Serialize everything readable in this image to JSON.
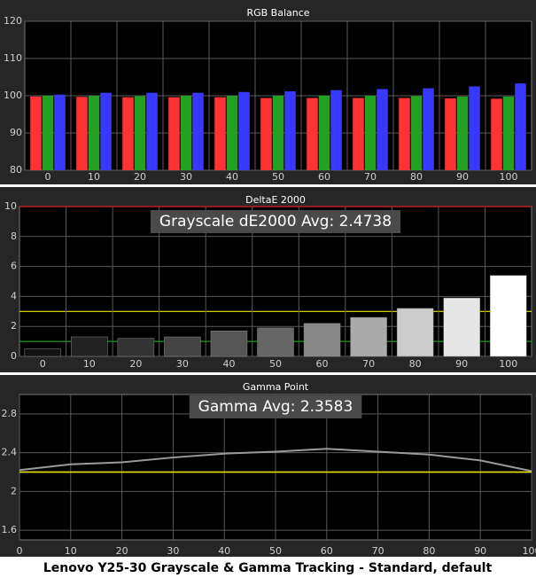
{
  "chart_data": [
    {
      "type": "bar",
      "title": "RGB Balance",
      "categories": [
        "0",
        "10",
        "20",
        "30",
        "40",
        "50",
        "60",
        "70",
        "80",
        "90",
        "100"
      ],
      "series": [
        {
          "color": "#ff3333",
          "values": [
            99.8,
            99.7,
            99.6,
            99.6,
            99.6,
            99.4,
            99.4,
            99.4,
            99.4,
            99.3,
            99.2
          ]
        },
        {
          "color": "#22a022",
          "values": [
            100.0,
            100.0,
            99.9,
            100.0,
            100.0,
            100.0,
            100.0,
            100.0,
            99.9,
            99.8,
            99.8
          ]
        },
        {
          "color": "#3838ff",
          "values": [
            100.3,
            100.8,
            100.8,
            100.8,
            101.0,
            101.2,
            101.5,
            101.8,
            102.0,
            102.5,
            103.3
          ]
        }
      ],
      "ylim": [
        80,
        120
      ],
      "yticks": [
        80,
        90,
        100,
        110,
        120
      ],
      "grid": true
    },
    {
      "type": "bar",
      "title": "DeltaE 2000",
      "annotation": "Grayscale dE2000 Avg: 2.4738",
      "categories": [
        "0",
        "10",
        "20",
        "30",
        "40",
        "50",
        "60",
        "70",
        "80",
        "90",
        "100"
      ],
      "values": [
        0.5,
        1.3,
        1.2,
        1.3,
        1.7,
        1.9,
        2.2,
        2.6,
        3.2,
        3.9,
        5.4
      ],
      "colors": [
        "#111111",
        "#222222",
        "#333333",
        "#444444",
        "#555555",
        "#666666",
        "#888888",
        "#aaaaaa",
        "#cccccc",
        "#e6e6e6",
        "#ffffff"
      ],
      "reference_lines": [
        {
          "value": 10,
          "color": "#e02020"
        },
        {
          "value": 3,
          "color": "#e8e800"
        },
        {
          "value": 1,
          "color": "#1a9a1a"
        }
      ],
      "ylim": [
        0,
        10
      ],
      "yticks": [
        0,
        2,
        4,
        6,
        8,
        10
      ],
      "grid": true
    },
    {
      "type": "line",
      "title": "Gamma Point",
      "annotation": "Gamma Avg: 2.3583",
      "x": [
        0,
        10,
        20,
        30,
        40,
        50,
        60,
        70,
        80,
        90,
        100
      ],
      "values": [
        2.22,
        2.28,
        2.3,
        2.35,
        2.39,
        2.41,
        2.44,
        2.41,
        2.38,
        2.32,
        2.21
      ],
      "color": "#9a9a9a",
      "reference_lines": [
        {
          "value": 2.2,
          "color": "#e8e800"
        }
      ],
      "xlim": [
        0,
        100
      ],
      "xticks": [
        0,
        10,
        20,
        30,
        40,
        50,
        60,
        70,
        80,
        90,
        100
      ],
      "ylim": [
        1.5,
        3.0
      ],
      "yticks": [
        1.6,
        2,
        2.4,
        2.8
      ],
      "grid": true
    }
  ],
  "caption": "Lenovo Y25-30 Grayscale & Gamma Tracking - Standard, default"
}
